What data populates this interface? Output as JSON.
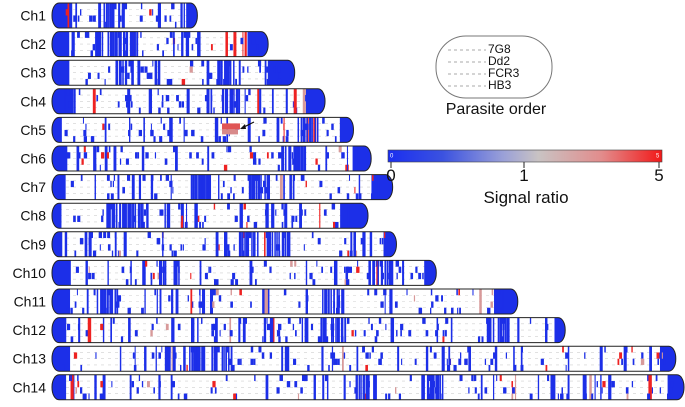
{
  "chromosomes": [
    {
      "label": "Ch1",
      "length": 0.23
    },
    {
      "label": "Ch2",
      "length": 0.342
    },
    {
      "label": "Ch3",
      "length": 0.384
    },
    {
      "label": "Ch4",
      "length": 0.432
    },
    {
      "label": "Ch5",
      "length": 0.477
    },
    {
      "label": "Ch6",
      "length": 0.505
    },
    {
      "label": "Ch7",
      "length": 0.539
    },
    {
      "label": "Ch8",
      "length": 0.5
    },
    {
      "label": "Ch9",
      "length": 0.545
    },
    {
      "label": "Ch10",
      "length": 0.608
    },
    {
      "label": "Ch11",
      "length": 0.737
    },
    {
      "label": "Ch12",
      "length": 0.812
    },
    {
      "label": "Ch13",
      "length": 0.987
    },
    {
      "label": "Ch14",
      "length": 1.0
    }
  ],
  "legend": {
    "parasites": [
      "7G8",
      "Dd2",
      "FCR3",
      "HB3"
    ],
    "parasite_title": "Parasite order",
    "scale_title": "Signal ratio",
    "scale_ticks": [
      "0",
      "1",
      "5"
    ],
    "scale_inner_start": "0",
    "scale_inner_end": "5"
  },
  "colors": {
    "low": "#1c2fe8",
    "mid": "#c9c9c9",
    "high": "#ee2222",
    "outline": "#222222"
  }
}
